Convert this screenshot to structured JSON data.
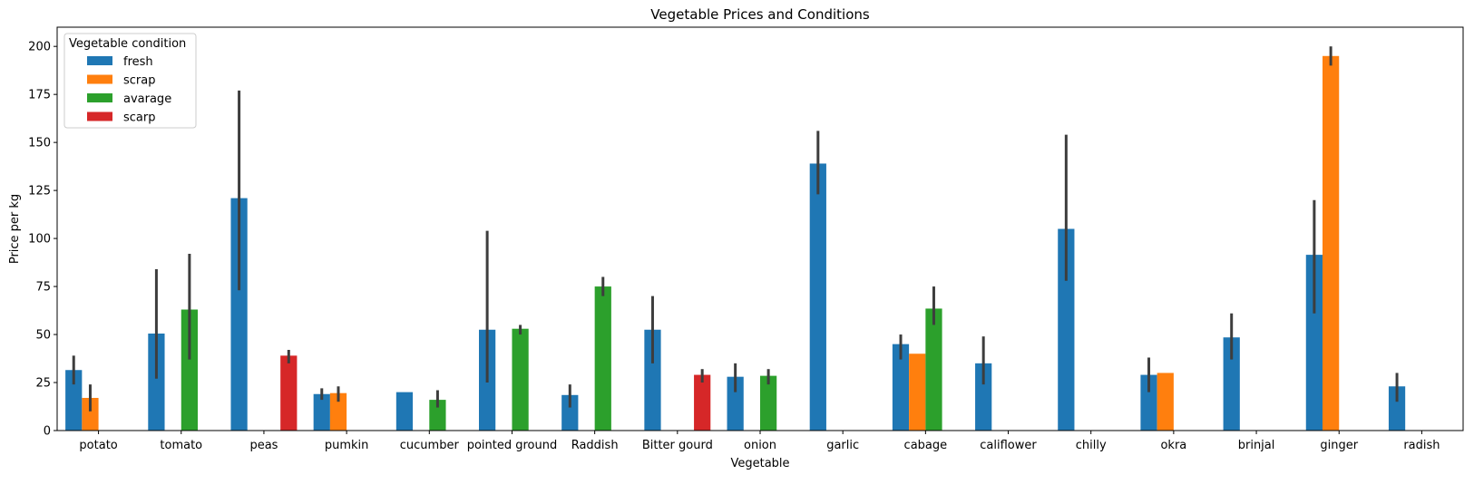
{
  "chart_data": {
    "type": "bar",
    "title": "Vegetable Prices and Conditions",
    "xlabel": "Vegetable",
    "ylabel": "Price per kg",
    "ylim": [
      0,
      210
    ],
    "yticks": [
      0,
      25,
      50,
      75,
      100,
      125,
      150,
      175,
      200
    ],
    "grid": false,
    "legend": {
      "title": "Vegetable condition",
      "placement": "top-left"
    },
    "categories": [
      "potato",
      "tomato",
      "peas",
      "pumkin",
      "cucumber",
      "pointed ground",
      "Raddish",
      "Bitter gourd",
      "onion",
      "garlic",
      "cabage",
      "califlower",
      "chilly",
      "okra",
      "brinjal",
      "ginger",
      "radish"
    ],
    "series": [
      {
        "name": "fresh",
        "color": "#1f77b4",
        "values": [
          31.5,
          50.5,
          121,
          19,
          20,
          52.5,
          18.5,
          52.5,
          28,
          139,
          45,
          35,
          105,
          29,
          48.5,
          91.5,
          23
        ],
        "errors": [
          [
            24,
            39
          ],
          [
            27,
            84
          ],
          [
            73,
            177
          ],
          [
            16,
            22
          ],
          null,
          [
            25,
            104
          ],
          [
            12,
            24
          ],
          [
            35,
            70
          ],
          [
            20,
            35
          ],
          [
            123,
            156
          ],
          [
            37,
            50
          ],
          [
            24,
            49
          ],
          [
            78,
            154
          ],
          [
            20,
            38
          ],
          [
            37,
            61
          ],
          [
            61,
            120
          ],
          [
            15,
            30
          ]
        ]
      },
      {
        "name": "scrap",
        "color": "#ff7f0e",
        "values": [
          17,
          null,
          null,
          19.5,
          null,
          null,
          null,
          null,
          null,
          null,
          40,
          null,
          null,
          30,
          null,
          195,
          null
        ],
        "errors": [
          [
            10,
            24
          ],
          null,
          null,
          [
            15,
            23
          ],
          null,
          null,
          null,
          null,
          null,
          null,
          null,
          null,
          null,
          null,
          null,
          [
            190,
            200
          ],
          null
        ]
      },
      {
        "name": "avarage",
        "color": "#2ca02c",
        "values": [
          null,
          63,
          null,
          null,
          16,
          53,
          75,
          null,
          28.5,
          null,
          63.5,
          null,
          null,
          null,
          null,
          null,
          null
        ],
        "errors": [
          null,
          [
            37,
            92
          ],
          null,
          null,
          [
            12,
            21
          ],
          [
            50,
            55
          ],
          [
            70,
            80
          ],
          null,
          [
            24,
            32
          ],
          null,
          [
            55,
            75
          ],
          null,
          null,
          null,
          null,
          null,
          null
        ]
      },
      {
        "name": "scarp",
        "color": "#d62728",
        "values": [
          null,
          null,
          39,
          null,
          null,
          null,
          null,
          29,
          null,
          null,
          null,
          null,
          null,
          null,
          null,
          null,
          null
        ],
        "errors": [
          null,
          null,
          [
            35,
            42
          ],
          null,
          null,
          null,
          null,
          [
            25,
            32
          ],
          null,
          null,
          null,
          null,
          null,
          null,
          null,
          null,
          null
        ]
      }
    ]
  }
}
